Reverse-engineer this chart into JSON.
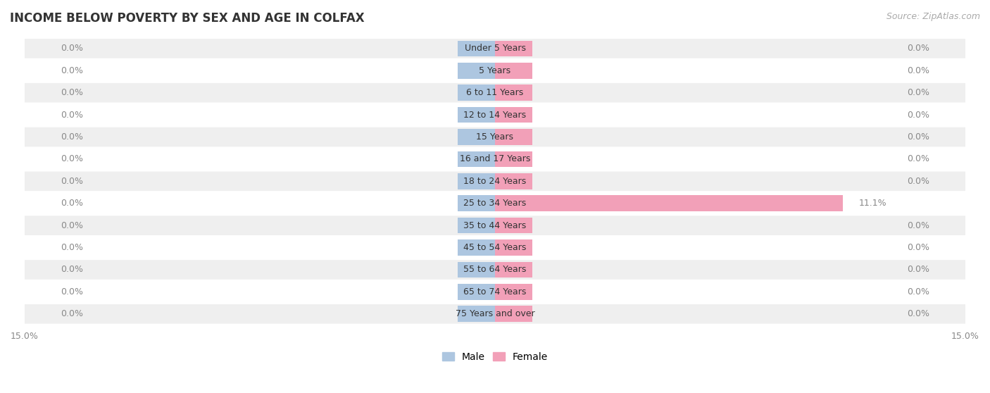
{
  "title": "INCOME BELOW POVERTY BY SEX AND AGE IN COLFAX",
  "source": "Source: ZipAtlas.com",
  "categories": [
    "Under 5 Years",
    "5 Years",
    "6 to 11 Years",
    "12 to 14 Years",
    "15 Years",
    "16 and 17 Years",
    "18 to 24 Years",
    "25 to 34 Years",
    "35 to 44 Years",
    "45 to 54 Years",
    "55 to 64 Years",
    "65 to 74 Years",
    "75 Years and over"
  ],
  "male_values": [
    0.0,
    0.0,
    0.0,
    0.0,
    0.0,
    0.0,
    0.0,
    0.0,
    0.0,
    0.0,
    0.0,
    0.0,
    0.0
  ],
  "female_values": [
    0.0,
    0.0,
    0.0,
    0.0,
    0.0,
    0.0,
    0.0,
    11.1,
    0.0,
    0.0,
    0.0,
    0.0,
    0.0
  ],
  "male_color": "#adc6e0",
  "female_color": "#f2a0b8",
  "background_color": "#ffffff",
  "row_bg_light": "#efefef",
  "row_bg_white": "#ffffff",
  "xlim": 15.0,
  "title_fontsize": 12,
  "source_fontsize": 9,
  "value_fontsize": 9,
  "cat_fontsize": 9,
  "axis_fontsize": 9,
  "bar_stub": 1.2,
  "bar_height": 0.72,
  "legend_male": "Male",
  "legend_female": "Female"
}
